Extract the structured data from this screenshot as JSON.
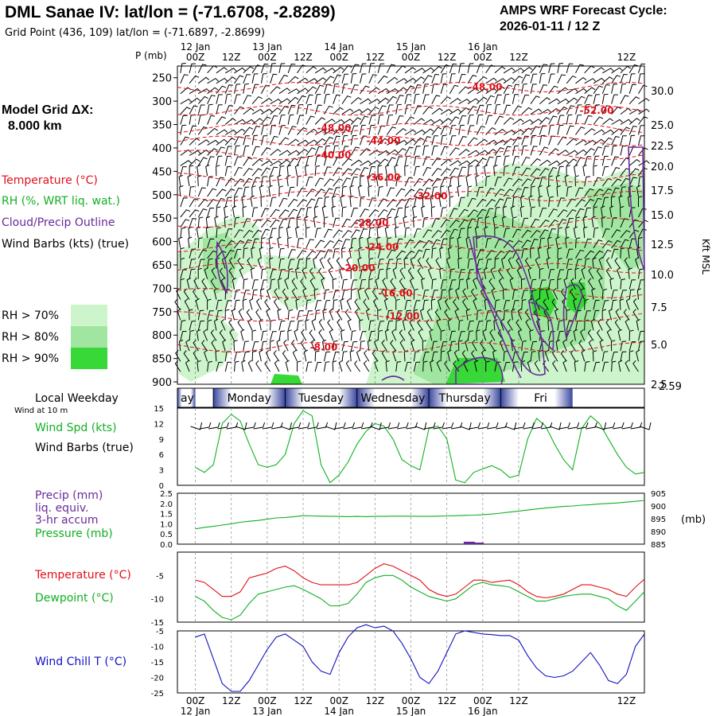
{
  "header": {
    "station": "DML Sanae IV:  lat/lon = (-71.6708, -2.8289)",
    "grid_point": "Grid Point (436, 109) lat/lon = (-71.6897, -2.8699)",
    "cycle_label": "AMPS WRF Forecast Cycle:",
    "cycle_value": "2026-01-11 / 12  Z"
  },
  "left_panel": {
    "grid_label": "Model Grid ΔX:",
    "grid_value": "8.000 km",
    "temperature_legend": "Temperature (°C)",
    "rh_legend": "RH (%, WRT liq. wat.)",
    "cloud_legend": "Cloud/Precip Outline",
    "wind_legend": "Wind Barbs (kts) (true)",
    "rh_thresholds": [
      "RH > 70%",
      "RH > 80%",
      "RH > 90%"
    ],
    "local_weekday": "Local Weekday",
    "wind_at": "Wind at 10 m",
    "wind_spd": "Wind Spd (kts)",
    "wind_barbs": "Wind Barbs (true)",
    "precip_title": "Precip (mm)",
    "precip_sub1": "liq. equiv.",
    "precip_sub2": "3-hr accum",
    "pressure_label": "Pressure (mb)",
    "temp_label": "Temperature (°C)",
    "dew_label": "Dewpoint (°C)",
    "windchill_label": "Wind Chill T (°C)"
  },
  "colors": {
    "temperature": "#e0101a",
    "rh": "#10b020",
    "cloud": "#6a2a9a",
    "windchill": "#1010c0",
    "rh70": "#ccf5cc",
    "rh80": "#a0e6a0",
    "rh90": "#38d838"
  },
  "chart_data": [
    {
      "type": "time-height cross section",
      "name": "upper-air",
      "pressure_unit": "P (mb)",
      "pressure_ticks": [
        250,
        300,
        350,
        400,
        450,
        500,
        550,
        600,
        650,
        700,
        750,
        800,
        850,
        900
      ],
      "height_axis_label": "Kft MSL",
      "height_ticks": [
        "30.0",
        "25.0",
        "22.5",
        "20.0",
        "17.5",
        "15.0",
        "12.5",
        "10.0",
        "7.5",
        "5.0",
        "2.5"
      ],
      "height_extra": "2.59",
      "top_time_ticks": [
        "00Z",
        "12Z",
        "00Z",
        "12Z",
        "00Z",
        "12Z",
        "00Z",
        "12Z",
        "00Z",
        "12Z"
      ],
      "top_date_labels": [
        "12 Jan",
        "13 Jan",
        "14 Jan",
        "15 Jan",
        "16 Jan"
      ],
      "temperature_contours": [
        {
          "label": "-48.00",
          "pressure": 270
        },
        {
          "label": "-52.00",
          "pressure": 320
        },
        {
          "label": "-48.00",
          "pressure": 358
        },
        {
          "label": "-44.00",
          "pressure": 385
        },
        {
          "label": "-40.00",
          "pressure": 415
        },
        {
          "label": "-36.00",
          "pressure": 463
        },
        {
          "label": "-32.00",
          "pressure": 503
        },
        {
          "label": "-28.00",
          "pressure": 560
        },
        {
          "label": "-24.00",
          "pressure": 612
        },
        {
          "label": "-20.00",
          "pressure": 657
        },
        {
          "label": "-16.00",
          "pressure": 710
        },
        {
          "label": "-12.00",
          "pressure": 760
        },
        {
          "label": "-8.00",
          "pressure": 826
        }
      ]
    },
    {
      "type": "weekday-bar",
      "days": [
        "ay",
        "Monday",
        "Tuesday",
        "Wednesday",
        "Thursday",
        "Fri"
      ]
    },
    {
      "type": "line",
      "name": "wind-speed",
      "ylabel": "Wind Spd (kts)",
      "ylim": [
        0,
        15
      ],
      "yticks": [
        0,
        3,
        6,
        9,
        12,
        15
      ],
      "hours": [
        0,
        3,
        6,
        9,
        12,
        15,
        18,
        21,
        24,
        27,
        30,
        33,
        36,
        39,
        42,
        45,
        48,
        51,
        54,
        57,
        60,
        63,
        66,
        69,
        72,
        75,
        78,
        81,
        84,
        87,
        90,
        93,
        96,
        99,
        102,
        105,
        108,
        111,
        114,
        117,
        120,
        123,
        126,
        129,
        132,
        135,
        138,
        141,
        144,
        147,
        150
      ],
      "values": [
        3.5,
        2.5,
        4,
        12,
        13.8,
        12.5,
        8,
        4,
        3.5,
        4,
        6,
        12,
        14.5,
        13.5,
        4,
        0.5,
        2,
        4.5,
        8,
        10.5,
        12,
        11.5,
        9,
        5,
        3.8,
        3,
        11,
        11.5,
        9,
        1,
        0.5,
        2.5,
        3.2,
        3.8,
        3,
        1.5,
        2,
        9,
        13,
        11.5,
        8,
        5,
        3,
        11,
        13.5,
        12,
        9,
        6,
        3.5,
        2.2,
        2.5
      ]
    },
    {
      "type": "bar+line",
      "name": "precip-pressure",
      "precip_ylim": [
        0,
        2.5
      ],
      "precip_yticks": [
        "0.0",
        "0.5",
        "1.0",
        "1.5",
        "2.0",
        "2.5"
      ],
      "pressure_ylim": [
        885,
        905
      ],
      "pressure_yticks": [
        "885",
        "890",
        "895",
        "900",
        "905"
      ],
      "pressure_unit": "(mb)",
      "precip_bars": [
        {
          "hour": 91.5,
          "value": 0.12
        },
        {
          "hour": 94.5,
          "value": 0.06
        }
      ],
      "pressure_values": [
        891,
        891.6,
        892,
        892.5,
        893,
        893.6,
        894,
        894.3,
        894.8,
        895.3,
        895.5,
        895.8,
        896.2,
        896.1,
        896,
        895.9,
        895.9,
        895.8,
        895.9,
        895.8,
        895.9,
        895.9,
        896,
        896,
        896,
        895.9,
        895.9,
        896,
        896.1,
        896.2,
        896.3,
        896.4,
        896.6,
        896.8,
        897.2,
        897.6,
        898,
        898.4,
        898.8,
        899.2,
        899.5,
        899.8,
        900,
        900.3,
        900.5,
        900.8,
        901,
        901.2,
        901.5,
        901.8,
        902.2
      ]
    },
    {
      "type": "line",
      "name": "temp-dewpoint",
      "ylim": [
        -15,
        0
      ],
      "yticks": [
        "-15",
        "-10",
        "-5"
      ],
      "temperature": [
        -6,
        -6.5,
        -8,
        -9.5,
        -9.5,
        -8.5,
        -5.5,
        -5,
        -4.5,
        -3.5,
        -3,
        -4,
        -5.5,
        -6.5,
        -7,
        -7,
        -7,
        -7,
        -6.5,
        -5,
        -3.5,
        -2.5,
        -3,
        -4,
        -5,
        -6,
        -8,
        -9,
        -9.5,
        -9,
        -7.5,
        -6,
        -6,
        -6.5,
        -6.2,
        -6,
        -7,
        -8.5,
        -9.5,
        -9.8,
        -9.5,
        -9,
        -8,
        -7,
        -7,
        -7.5,
        -8,
        -9,
        -9.5,
        -7.5,
        -5.8
      ],
      "dewpoint": [
        -9.5,
        -10.5,
        -12.5,
        -14,
        -14.5,
        -13.5,
        -11,
        -9,
        -8.5,
        -8,
        -7.5,
        -7.2,
        -8,
        -9,
        -10,
        -11.5,
        -11.5,
        -11,
        -9,
        -6.5,
        -5.5,
        -5,
        -5,
        -6,
        -7.5,
        -8.5,
        -9.5,
        -10,
        -10.5,
        -10,
        -8.5,
        -7,
        -6.5,
        -7,
        -7.2,
        -7.5,
        -8.5,
        -9.5,
        -10.5,
        -10.5,
        -10,
        -9.5,
        -9.2,
        -9,
        -9,
        -9.5,
        -10,
        -11.5,
        -12.5,
        -10.5,
        -8.5
      ]
    },
    {
      "type": "line",
      "name": "wind-chill",
      "ylabel": "Wind Chill T (°C)",
      "ylim": [
        -25,
        -5
      ],
      "yticks": [
        "-25",
        "-20",
        "-15",
        "-10",
        "-5"
      ],
      "values": [
        -7,
        -6,
        -14,
        -22,
        -24.5,
        -24.5,
        -21,
        -16,
        -11,
        -7,
        -6,
        -8,
        -10,
        -15,
        -18,
        -19,
        -12,
        -7,
        -4,
        -3,
        -4,
        -3.5,
        -5,
        -9,
        -14,
        -20,
        -22,
        -18,
        -12,
        -6,
        -5,
        -5.5,
        -6,
        -6.2,
        -6.5,
        -6.5,
        -8,
        -13,
        -17,
        -19.5,
        -20,
        -19.5,
        -18,
        -15,
        -12,
        -16,
        -21,
        -22,
        -19,
        -10,
        -6
      ]
    },
    {
      "type": "time-axis",
      "bottom_time_ticks": [
        "00Z",
        "12Z",
        "00Z",
        "12Z",
        "00Z",
        "12Z",
        "00Z",
        "12Z",
        "00Z",
        "12Z"
      ],
      "bottom_date_labels": [
        "12 Jan",
        "13 Jan",
        "14 Jan",
        "15 Jan",
        "16 Jan"
      ]
    }
  ]
}
